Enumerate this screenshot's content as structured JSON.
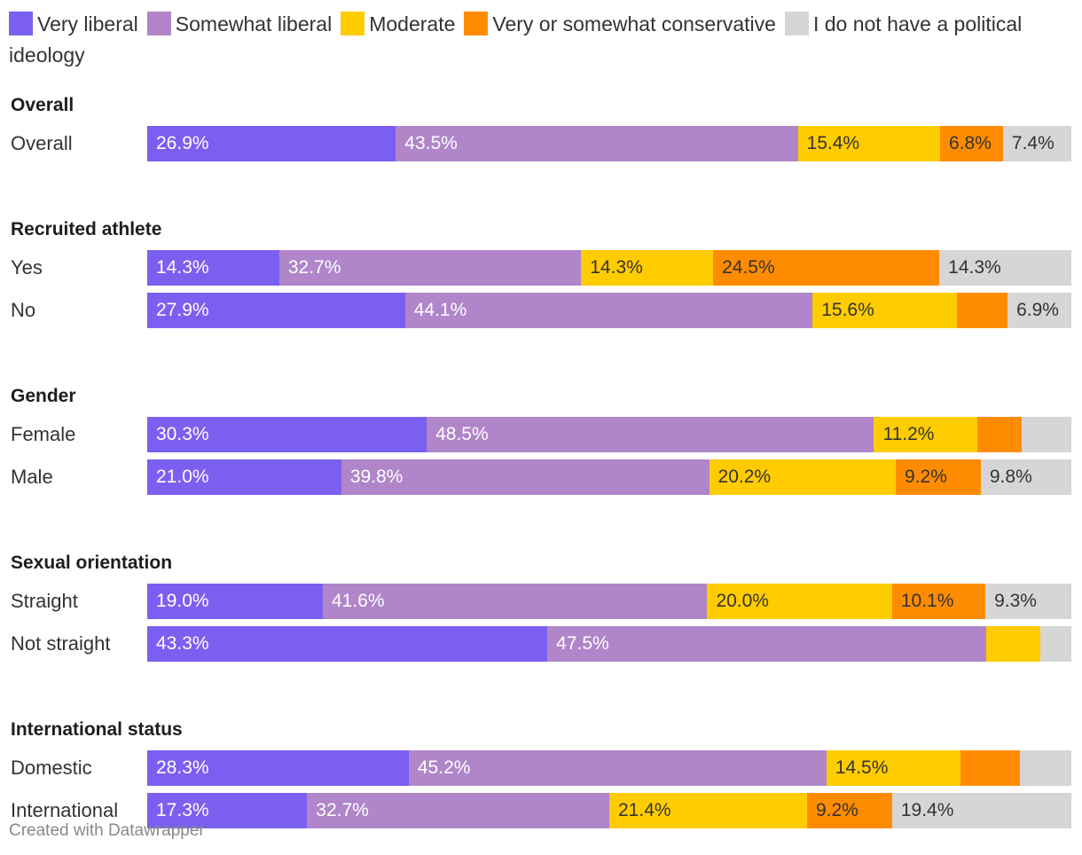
{
  "chart_data": {
    "type": "bar",
    "orientation": "horizontal",
    "stacked": true,
    "normalized": true,
    "unit": "%",
    "legend_placement": "top",
    "series": [
      {
        "name": "Very liberal",
        "color": "#7b5ff0",
        "label_color": "#ffffff"
      },
      {
        "name": "Somewhat liberal",
        "color": "#b085c9",
        "label_color": "#ffffff"
      },
      {
        "name": "Moderate",
        "color": "#ffcc00",
        "label_color": "#333333"
      },
      {
        "name": "Very or somewhat conservative",
        "color": "#ff8c00",
        "label_color": "#333333"
      },
      {
        "name": "I do not have a political ideology",
        "color": "#d6d6d6",
        "label_color": "#333333"
      }
    ],
    "groups": [
      {
        "title": "Overall",
        "rows": [
          {
            "label": "Overall",
            "values": [
              26.9,
              43.5,
              15.4,
              6.8,
              7.4
            ],
            "labels": [
              "26.9%",
              "43.5%",
              "15.4%",
              "6.8%",
              "7.4%"
            ]
          }
        ]
      },
      {
        "title": "Recruited athlete",
        "rows": [
          {
            "label": "Yes",
            "values": [
              14.3,
              32.7,
              14.3,
              24.5,
              14.3
            ],
            "labels": [
              "14.3%",
              "32.7%",
              "14.3%",
              "24.5%",
              "14.3%"
            ]
          },
          {
            "label": "No",
            "values": [
              27.9,
              44.1,
              15.6,
              5.5,
              6.9
            ],
            "labels": [
              "27.9%",
              "44.1%",
              "15.6%",
              "",
              "6.9%"
            ]
          }
        ]
      },
      {
        "title": "Gender",
        "rows": [
          {
            "label": "Female",
            "values": [
              30.3,
              48.5,
              11.2,
              4.8,
              5.4
            ],
            "labels": [
              "30.3%",
              "48.5%",
              "11.2%",
              "",
              ""
            ]
          },
          {
            "label": "Male",
            "values": [
              21.0,
              39.8,
              20.2,
              9.2,
              9.8
            ],
            "labels": [
              "21.0%",
              "39.8%",
              "20.2%",
              "9.2%",
              "9.8%"
            ]
          }
        ]
      },
      {
        "title": "Sexual orientation",
        "rows": [
          {
            "label": "Straight",
            "values": [
              19.0,
              41.6,
              20.0,
              10.1,
              9.3
            ],
            "labels": [
              "19.0%",
              "41.6%",
              "20.0%",
              "10.1%",
              "9.3%"
            ]
          },
          {
            "label": "Not straight",
            "values": [
              43.3,
              47.5,
              5.8,
              0,
              3.4
            ],
            "labels": [
              "43.3%",
              "47.5%",
              "",
              "",
              ""
            ]
          }
        ]
      },
      {
        "title": "International status",
        "rows": [
          {
            "label": "Domestic",
            "values": [
              28.3,
              45.2,
              14.5,
              6.4,
              5.6
            ],
            "labels": [
              "28.3%",
              "45.2%",
              "14.5%",
              "",
              ""
            ]
          },
          {
            "label": "International",
            "values": [
              17.3,
              32.7,
              21.4,
              9.2,
              19.4
            ],
            "labels": [
              "17.3%",
              "32.7%",
              "21.4%",
              "9.2%",
              "19.4%"
            ]
          }
        ]
      }
    ]
  },
  "legend": [
    {
      "label": "Very liberal",
      "color": "#7b5ff0"
    },
    {
      "label": "Somewhat liberal",
      "color": "#b085c9"
    },
    {
      "label": "Moderate",
      "color": "#ffcc00"
    },
    {
      "label": "Very or somewhat conservative",
      "color": "#ff8c00"
    },
    {
      "label": "I do not have a political ideology",
      "color": "#d6d6d6"
    }
  ],
  "footer": {
    "credit": "Created with Datawrapper"
  }
}
